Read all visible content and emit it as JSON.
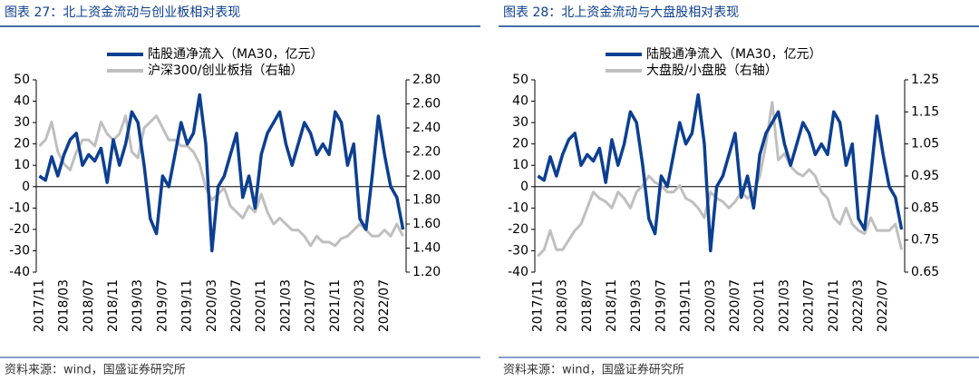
{
  "chart_data": [
    {
      "type": "line",
      "title": "图表 27：北上资金流动与创业板相对表现",
      "source": "资料来源：wind，国盛证券研究所",
      "categories": [
        "2017/11",
        null,
        null,
        null,
        "2018/03",
        null,
        null,
        null,
        "2018/07",
        null,
        null,
        null,
        "2018/11",
        null,
        null,
        null,
        "2019/03",
        null,
        null,
        null,
        "2019/07",
        null,
        null,
        null,
        "2019/11",
        null,
        null,
        null,
        "2020/03",
        null,
        null,
        null,
        "2020/07",
        null,
        null,
        null,
        "2020/11",
        null,
        null,
        null,
        "2021/03",
        null,
        null,
        null,
        "2021/07",
        null,
        null,
        null,
        "2021/11",
        null,
        null,
        null,
        "2022/03",
        null,
        null,
        null,
        "2022/07",
        null,
        null,
        null
      ],
      "ylim": [
        -40,
        50
      ],
      "yticks": [
        -40,
        -30,
        -20,
        -10,
        0,
        10,
        20,
        30,
        40,
        50
      ],
      "y2lim": [
        1.2,
        2.8
      ],
      "y2ticks": [
        {
          "value": 1.2,
          "label": "1.20"
        },
        {
          "value": 1.4,
          "label": "1.40"
        },
        {
          "value": 1.6,
          "label": "1.60"
        },
        {
          "value": 1.8,
          "label": "1.80"
        },
        {
          "value": 2.0,
          "label": "2.00"
        },
        {
          "value": 2.2,
          "label": "2.20"
        },
        {
          "value": 2.4,
          "label": "2.40"
        },
        {
          "value": 2.6,
          "label": "2.60"
        },
        {
          "value": 2.8,
          "label": "2.80"
        }
      ],
      "series": [
        {
          "name": "陆股通净流入（MA30，亿元）",
          "color": "#0c3f92",
          "values": [
            5,
            3,
            14,
            5,
            15,
            22,
            25,
            10,
            15,
            12,
            18,
            2,
            22,
            10,
            20,
            35,
            30,
            10,
            -15,
            -22,
            5,
            0,
            15,
            30,
            20,
            25,
            43,
            20,
            -30,
            0,
            5,
            15,
            25,
            -5,
            5,
            -10,
            15,
            25,
            30,
            35,
            20,
            10,
            20,
            30,
            25,
            15,
            20,
            15,
            35,
            30,
            10,
            20,
            -15,
            -20,
            5,
            33,
            15,
            0,
            -5,
            -20
          ]
        },
        {
          "name": "沪深300/创业板指（右轴）",
          "color": "#bfbfbf",
          "axis": "y2",
          "values": [
            2.25,
            2.3,
            2.45,
            2.2,
            2.1,
            2.05,
            2.2,
            2.3,
            2.3,
            2.25,
            2.45,
            2.35,
            2.3,
            2.35,
            2.5,
            2.2,
            2.15,
            2.4,
            2.45,
            2.5,
            2.4,
            2.3,
            2.3,
            2.25,
            2.25,
            2.2,
            2.1,
            1.9,
            1.8,
            1.85,
            1.9,
            1.75,
            1.7,
            1.65,
            1.75,
            1.7,
            1.85,
            1.7,
            1.6,
            1.65,
            1.6,
            1.55,
            1.55,
            1.5,
            1.42,
            1.5,
            1.45,
            1.45,
            1.42,
            1.48,
            1.5,
            1.55,
            1.6,
            1.55,
            1.5,
            1.5,
            1.55,
            1.5,
            1.6,
            1.5
          ]
        }
      ]
    },
    {
      "type": "line",
      "title": "图表 28：北上资金流动与大盘股相对表现",
      "source": "资料来源：wind，国盛证券研究所",
      "categories": [
        "2017/11",
        null,
        null,
        null,
        "2018/03",
        null,
        null,
        null,
        "2018/07",
        null,
        null,
        null,
        "2018/11",
        null,
        null,
        null,
        "2019/03",
        null,
        null,
        null,
        "2019/07",
        null,
        null,
        null,
        "2019/11",
        null,
        null,
        null,
        "2020/03",
        null,
        null,
        null,
        "2020/07",
        null,
        null,
        null,
        "2020/11",
        null,
        null,
        null,
        "2021/03",
        null,
        null,
        null,
        "2021/07",
        null,
        null,
        null,
        "2021/11",
        null,
        null,
        null,
        "2022/03",
        null,
        null,
        null,
        "2022/07",
        null,
        null,
        null
      ],
      "ylim": [
        -40,
        50
      ],
      "yticks": [
        -40,
        -30,
        -20,
        -10,
        0,
        10,
        20,
        30,
        40,
        50
      ],
      "y2lim": [
        0.65,
        1.25
      ],
      "y2ticks": [
        0.65,
        0.75,
        0.85,
        0.95,
        1.05,
        1.15,
        1.25
      ],
      "series": [
        {
          "name": "陆股通净流入（MA30，亿元）",
          "color": "#0c3f92",
          "values": [
            5,
            3,
            14,
            5,
            15,
            22,
            25,
            10,
            15,
            12,
            18,
            2,
            22,
            10,
            20,
            35,
            30,
            10,
            -15,
            -22,
            5,
            0,
            15,
            30,
            20,
            25,
            43,
            20,
            -30,
            0,
            5,
            15,
            25,
            -5,
            5,
            -10,
            15,
            25,
            30,
            35,
            20,
            10,
            20,
            30,
            25,
            15,
            20,
            15,
            35,
            30,
            10,
            20,
            -15,
            -20,
            5,
            33,
            15,
            0,
            -5,
            -20
          ]
        },
        {
          "name": "大盘股/小盘股（右轴）",
          "color": "#bfbfbf",
          "axis": "y2",
          "values": [
            0.7,
            0.72,
            0.78,
            0.72,
            0.72,
            0.75,
            0.78,
            0.8,
            0.85,
            0.9,
            0.88,
            0.87,
            0.85,
            0.9,
            0.88,
            0.85,
            0.9,
            0.92,
            0.95,
            0.93,
            0.92,
            0.9,
            0.9,
            0.92,
            0.88,
            0.87,
            0.85,
            0.82,
            0.9,
            0.88,
            0.87,
            0.85,
            0.87,
            0.9,
            0.88,
            0.9,
            0.95,
            1.05,
            1.18,
            1.0,
            1.02,
            0.98,
            0.96,
            0.95,
            0.97,
            0.95,
            0.9,
            0.88,
            0.82,
            0.8,
            0.85,
            0.8,
            0.78,
            0.77,
            0.82,
            0.78,
            0.78,
            0.78,
            0.8,
            0.72
          ]
        }
      ]
    }
  ]
}
